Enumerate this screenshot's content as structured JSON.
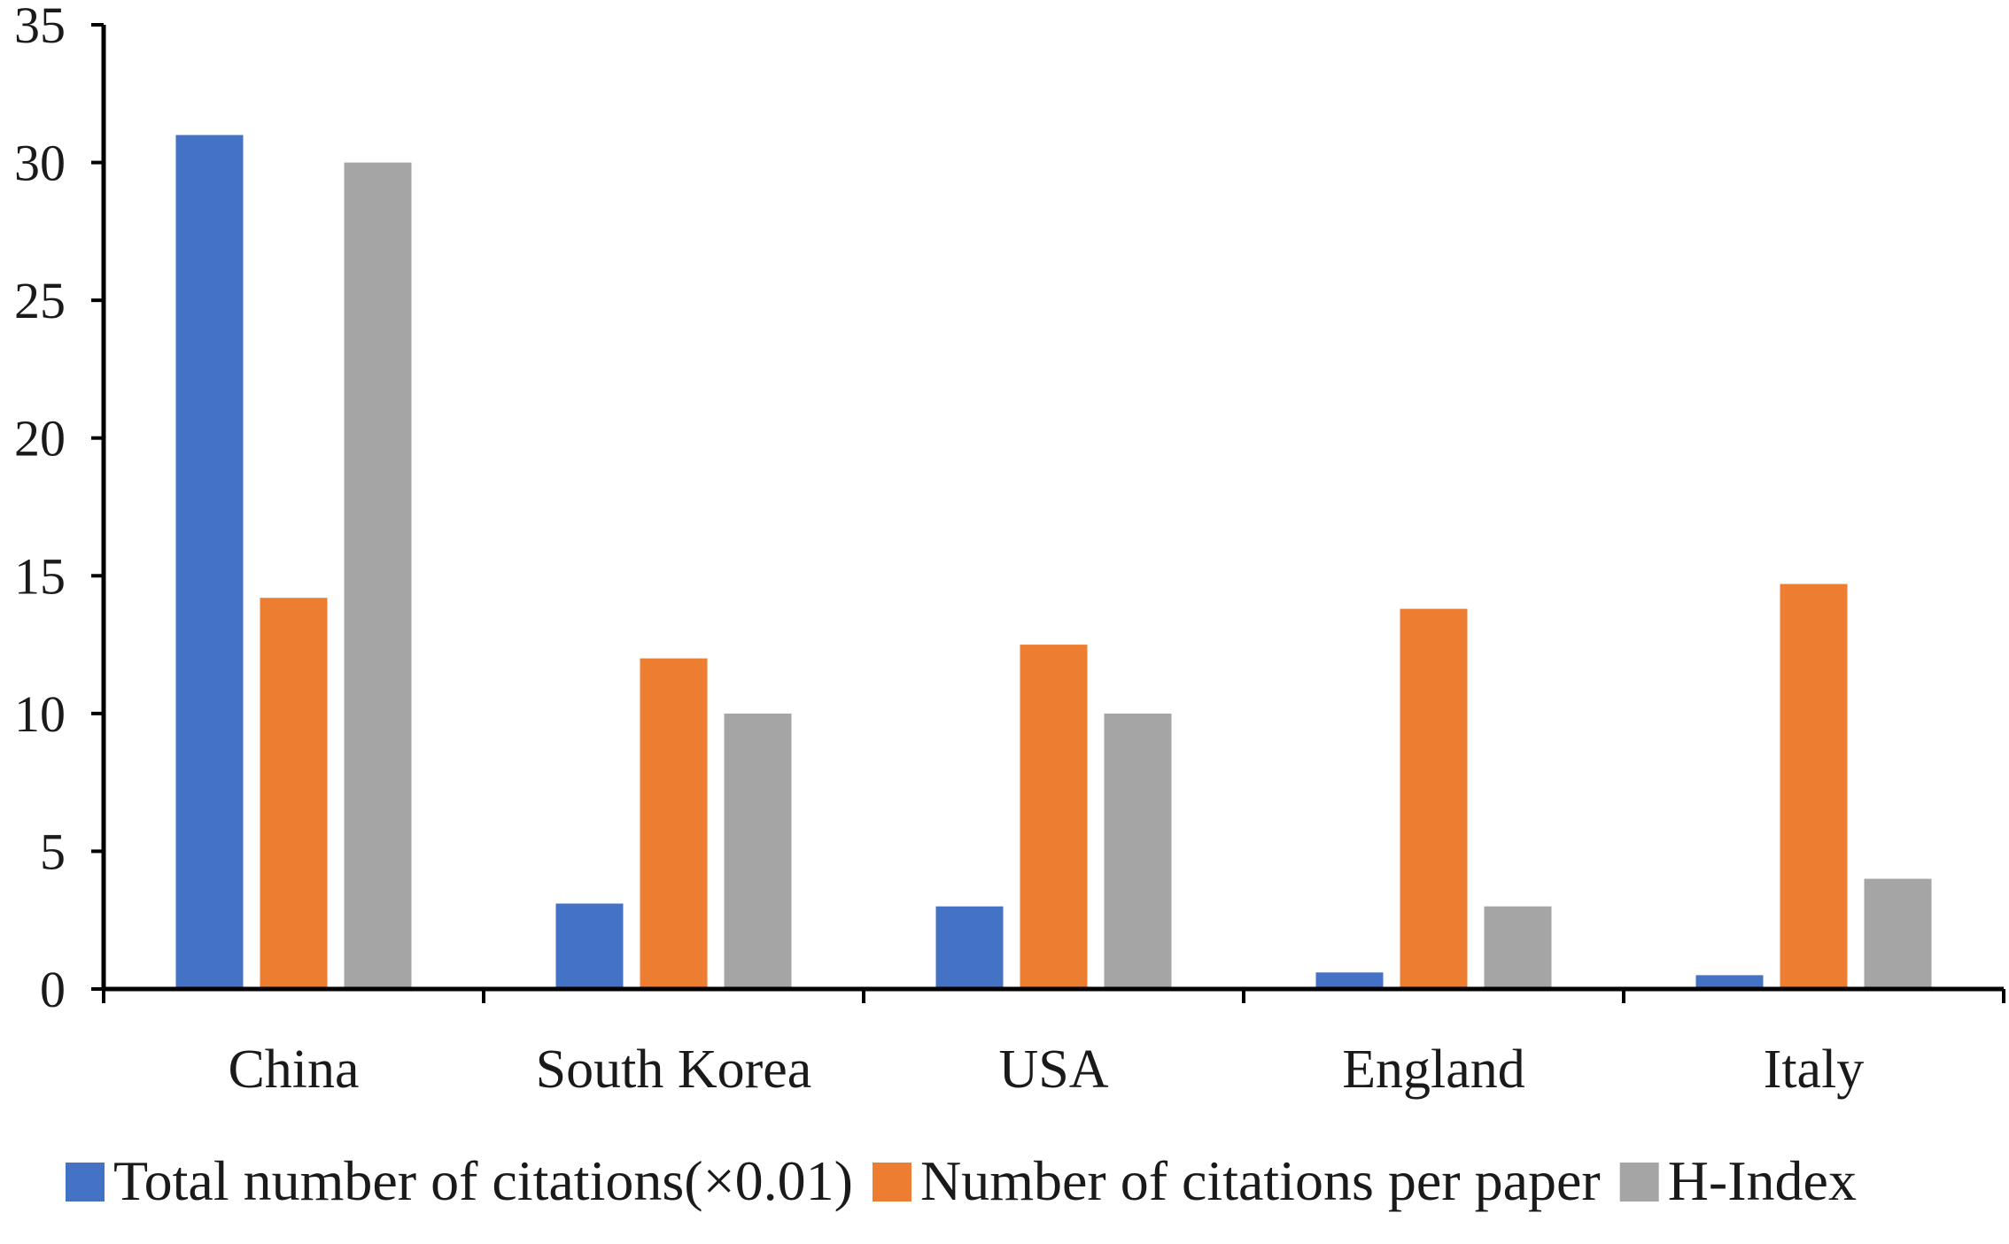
{
  "chart_data": {
    "type": "bar",
    "title": "",
    "xlabel": "",
    "ylabel": "",
    "categories": [
      "China",
      "South Korea",
      "USA",
      "England",
      "Italy"
    ],
    "ylim": [
      0,
      35
    ],
    "yticks": [
      0,
      5,
      10,
      15,
      20,
      25,
      30,
      35
    ],
    "ytick_labels": [
      "0",
      "5",
      "10",
      "15",
      "20",
      "25",
      "30",
      "35"
    ],
    "grid": false,
    "legend_position": "bottom",
    "series": [
      {
        "name": "Total number of citations(×0.01)",
        "color": "#4472c4",
        "values": [
          31.0,
          3.1,
          3.0,
          0.6,
          0.5
        ]
      },
      {
        "name": "Number of citations per paper",
        "color": "#ed7d31",
        "values": [
          14.2,
          12.0,
          12.5,
          13.8,
          14.7
        ]
      },
      {
        "name": "H-Index",
        "color": "#a5a5a5",
        "values": [
          30,
          10,
          10,
          3,
          4
        ]
      }
    ]
  }
}
